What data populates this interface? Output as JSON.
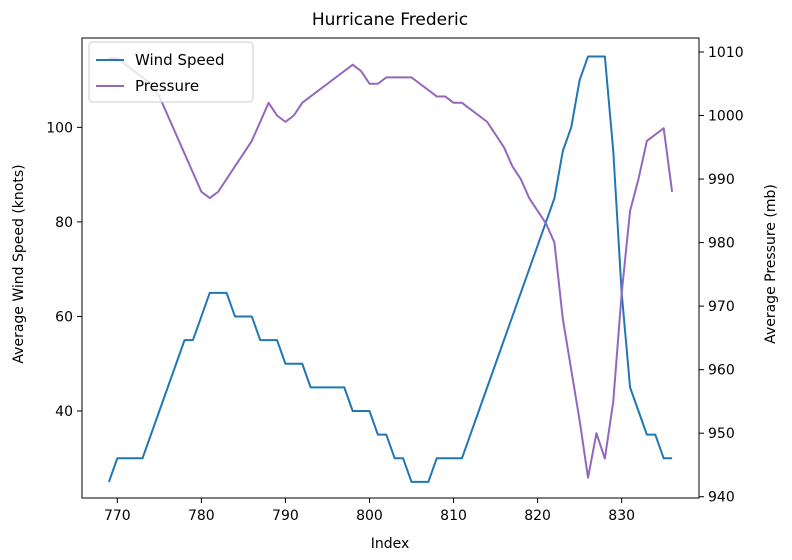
{
  "chart_data": {
    "type": "line",
    "title": "Hurricane Frederic",
    "xlabel": "Index",
    "ylabel_left": "Average Wind Speed (knots)",
    "ylabel_right": "Average Pressure (mb)",
    "xlim": [
      765.8,
      839.2
    ],
    "ylim_left": [
      21.6,
      118.9
    ],
    "ylim_right": [
      939.8,
      1012.2
    ],
    "xticks": [
      770,
      780,
      790,
      800,
      810,
      820,
      830
    ],
    "yticks_left": [
      40,
      60,
      80,
      100
    ],
    "yticks_right": [
      940,
      950,
      960,
      970,
      980,
      990,
      1000,
      1010
    ],
    "legend_position": "top-left",
    "grid": false,
    "series": [
      {
        "name": "Wind Speed",
        "axis": "left",
        "color": "#1f77b4",
        "x": [
          769,
          770,
          771,
          772,
          773,
          774,
          775,
          776,
          777,
          778,
          779,
          780,
          781,
          782,
          783,
          784,
          785,
          786,
          787,
          788,
          789,
          790,
          791,
          792,
          793,
          794,
          795,
          796,
          797,
          798,
          799,
          800,
          801,
          802,
          803,
          804,
          805,
          806,
          807,
          808,
          809,
          810,
          811,
          812,
          813,
          814,
          815,
          816,
          817,
          818,
          819,
          820,
          821,
          822,
          823,
          824,
          825,
          826,
          827,
          828,
          829,
          830,
          831,
          832,
          833,
          834,
          835,
          836
        ],
        "y": [
          25,
          30,
          30,
          30,
          30,
          35,
          40,
          45,
          50,
          55,
          55,
          60,
          65,
          65,
          65,
          60,
          60,
          60,
          55,
          55,
          55,
          50,
          50,
          50,
          45,
          45,
          45,
          45,
          45,
          40,
          40,
          40,
          35,
          35,
          30,
          30,
          25,
          25,
          25,
          30,
          30,
          30,
          30,
          35,
          40,
          45,
          50,
          55,
          60,
          65,
          70,
          75,
          80,
          85,
          95,
          100,
          110,
          115,
          115,
          115,
          95,
          65,
          45,
          40,
          35,
          35,
          30,
          30
        ]
      },
      {
        "name": "Pressure",
        "axis": "right",
        "color": "#9467bd",
        "x": [
          769,
          770,
          771,
          772,
          773,
          774,
          775,
          776,
          777,
          778,
          779,
          780,
          781,
          782,
          783,
          784,
          785,
          786,
          787,
          788,
          789,
          790,
          791,
          792,
          793,
          794,
          795,
          796,
          797,
          798,
          799,
          800,
          801,
          802,
          803,
          804,
          805,
          806,
          807,
          808,
          809,
          810,
          811,
          812,
          813,
          814,
          815,
          816,
          817,
          818,
          819,
          820,
          821,
          822,
          823,
          824,
          825,
          826,
          827,
          828,
          829,
          830,
          831,
          832,
          833,
          834,
          835,
          836
        ],
        "y": [
          1009,
          1009,
          1008,
          1007,
          1006,
          1005,
          1003,
          1000,
          997,
          994,
          991,
          988,
          987,
          988,
          990,
          992,
          994,
          996,
          999,
          1002,
          1000,
          999,
          1000,
          1002,
          1003,
          1004,
          1005,
          1006,
          1007,
          1008,
          1007,
          1005,
          1005,
          1006,
          1006,
          1006,
          1006,
          1005,
          1004,
          1003,
          1003,
          1002,
          1002,
          1001,
          1000,
          999,
          997,
          995,
          992,
          990,
          987,
          985,
          983,
          980,
          968,
          960,
          952,
          943,
          950,
          946,
          955,
          972,
          985,
          990,
          996,
          997,
          998,
          988
        ]
      }
    ]
  }
}
